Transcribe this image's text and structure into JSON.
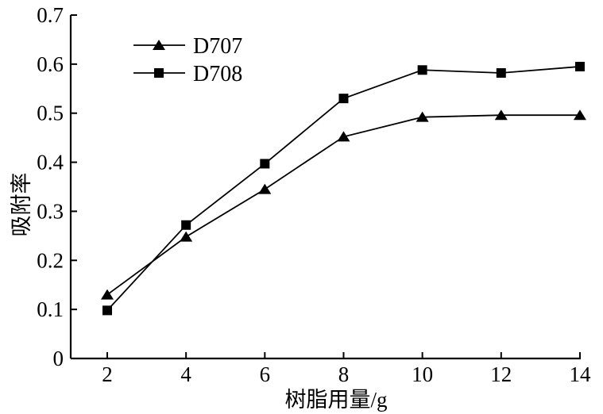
{
  "chart_data": {
    "type": "line",
    "xlabel": "树脂用量/g",
    "ylabel": "吸附率",
    "x": [
      2,
      4,
      6,
      8,
      10,
      12,
      14
    ],
    "series": [
      {
        "name": "D707",
        "marker": "triangle",
        "values": [
          0.13,
          0.248,
          0.345,
          0.452,
          0.492,
          0.496,
          0.496
        ]
      },
      {
        "name": "D708",
        "marker": "square",
        "values": [
          0.098,
          0.272,
          0.397,
          0.53,
          0.588,
          0.582,
          0.595
        ]
      }
    ],
    "xlim": [
      1,
      14
    ],
    "ylim": [
      0,
      0.7
    ],
    "x_ticks": [
      2,
      4,
      6,
      8,
      10,
      12,
      14
    ],
    "y_ticks": [
      0,
      0.1,
      0.2,
      0.3,
      0.4,
      0.5,
      0.6,
      0.7
    ],
    "grid": false,
    "legend_position": "inside-top-left",
    "colors": {
      "line": "#000000",
      "text": "#000000",
      "background": "#ffffff"
    }
  }
}
